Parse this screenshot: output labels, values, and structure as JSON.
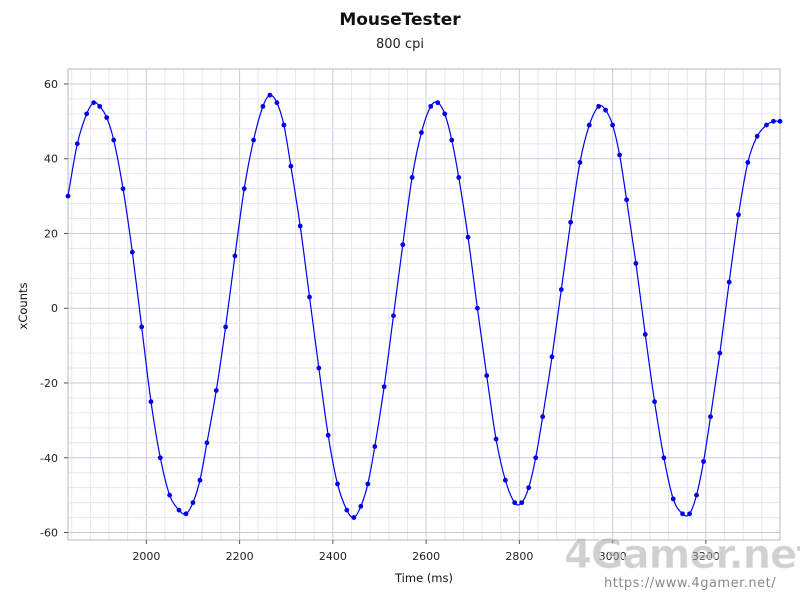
{
  "chart_data": {
    "type": "scatter",
    "title": "MouseTester",
    "subtitle": "800 cpi",
    "xlabel": "Time (ms)",
    "ylabel": "xCounts",
    "xlim": [
      1832,
      3359
    ],
    "ylim": [
      -62,
      64
    ],
    "x_ticks": [
      2000,
      2200,
      2400,
      2600,
      2800,
      3000,
      3200
    ],
    "y_ticks": [
      -60,
      -40,
      -20,
      0,
      20,
      40,
      60
    ],
    "grid": true,
    "legend": "none",
    "series": [
      {
        "style": "line-with-markers",
        "color": "#0000ee",
        "x": [
          1832,
          1852,
          1872,
          1887,
          1900,
          1915,
          1930,
          1950,
          1970,
          1990,
          2010,
          2030,
          2050,
          2070,
          2085,
          2100,
          2115,
          2130,
          2150,
          2170,
          2190,
          2210,
          2230,
          2250,
          2265,
          2280,
          2295,
          2310,
          2330,
          2350,
          2370,
          2390,
          2410,
          2430,
          2445,
          2460,
          2475,
          2490,
          2510,
          2530,
          2550,
          2570,
          2590,
          2610,
          2625,
          2640,
          2655,
          2670,
          2690,
          2710,
          2730,
          2750,
          2770,
          2790,
          2805,
          2820,
          2835,
          2850,
          2870,
          2890,
          2910,
          2930,
          2950,
          2970,
          2985,
          3000,
          3015,
          3030,
          3050,
          3070,
          3090,
          3110,
          3130,
          3150,
          3165,
          3180,
          3195,
          3210,
          3230,
          3250,
          3270,
          3290,
          3310,
          3330,
          3345,
          3359
        ],
        "y": [
          30,
          44,
          52,
          55,
          54,
          51,
          45,
          32,
          15,
          -5,
          -25,
          -40,
          -50,
          -54,
          -55,
          -52,
          -46,
          -36,
          -22,
          -5,
          14,
          32,
          45,
          54,
          57,
          55,
          49,
          38,
          22,
          3,
          -16,
          -34,
          -47,
          -54,
          -56,
          -53,
          -47,
          -37,
          -21,
          -2,
          17,
          35,
          47,
          54,
          55,
          52,
          45,
          35,
          19,
          0,
          -18,
          -35,
          -46,
          -52,
          -52,
          -48,
          -40,
          -29,
          -13,
          5,
          23,
          39,
          49,
          54,
          53,
          49,
          41,
          29,
          12,
          -7,
          -25,
          -40,
          -51,
          -55,
          -55,
          -50,
          -41,
          -29,
          -12,
          7,
          25,
          39,
          46,
          49,
          50,
          50
        ]
      }
    ]
  },
  "watermark": {
    "logo": "4Gamer.net",
    "url": "https://www.4gamer.net/"
  }
}
